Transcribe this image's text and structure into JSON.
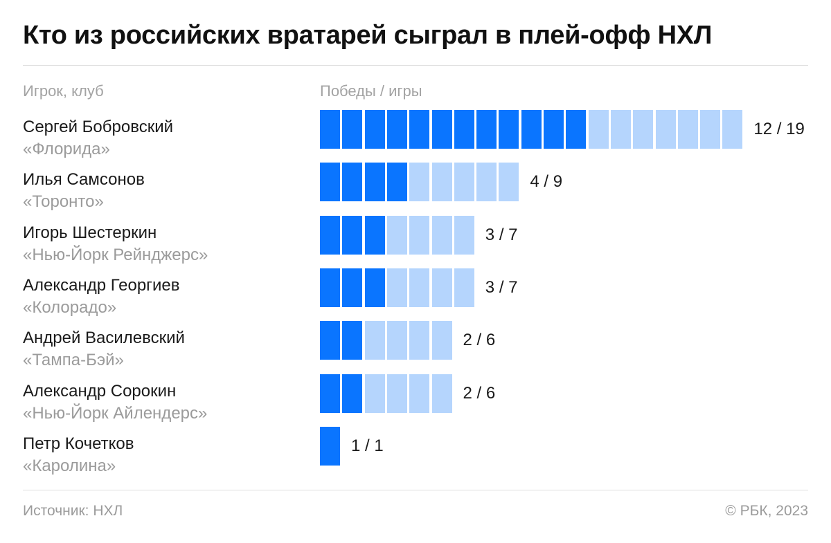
{
  "title": "Кто из российских вратарей сыграл в плей-офф НХЛ",
  "columns": {
    "player": "Игрок, клуб",
    "bars": "Победы / игры"
  },
  "colors": {
    "wins": "#0a75ff",
    "games": "#b5d5fd"
  },
  "chart_data": {
    "type": "bar",
    "title": "Кто из российских вратарей сыграл в плей-офф НХЛ",
    "xlabel": "Победы / игры",
    "ylabel": "Игрок, клуб",
    "series": [
      {
        "name": "Победы",
        "values": [
          12,
          4,
          3,
          3,
          2,
          2,
          1
        ]
      },
      {
        "name": "Игры",
        "values": [
          19,
          9,
          7,
          7,
          6,
          6,
          1
        ]
      }
    ],
    "rows": [
      {
        "name": "Сергей Бобровский",
        "club": "«Флорида»",
        "wins": 12,
        "games": 19,
        "label": "12 / 19"
      },
      {
        "name": "Илья Самсонов",
        "club": "«Торонто»",
        "wins": 4,
        "games": 9,
        "label": "4 / 9"
      },
      {
        "name": "Игорь Шестеркин",
        "club": "«Нью-Йорк Рейнджерс»",
        "wins": 3,
        "games": 7,
        "label": "3 / 7"
      },
      {
        "name": "Александр Георгиев",
        "club": "«Колорадо»",
        "wins": 3,
        "games": 7,
        "label": "3 / 7"
      },
      {
        "name": "Андрей Василевский",
        "club": "«Тампа-Бэй»",
        "wins": 2,
        "games": 6,
        "label": "2 / 6"
      },
      {
        "name": "Александр Сорокин",
        "club": "«Нью-Йорк Айлендерс»",
        "wins": 2,
        "games": 6,
        "label": "2 / 6"
      },
      {
        "name": "Петр Кочетков",
        "club": "«Каролина»",
        "wins": 1,
        "games": 1,
        "label": "1 / 1"
      }
    ]
  },
  "footer": {
    "source": "Источник: НХЛ",
    "copyright": "© РБК, 2023"
  }
}
